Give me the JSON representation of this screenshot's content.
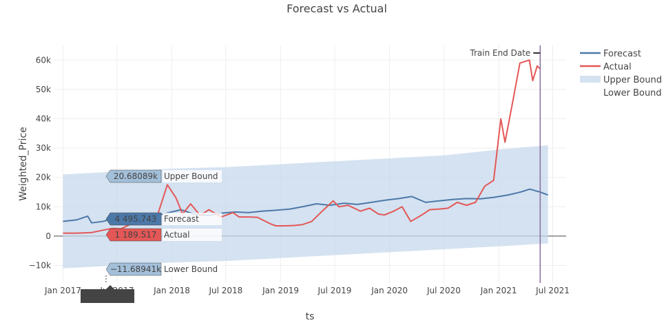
{
  "chart_data": {
    "type": "line",
    "title": "Forecast vs Actual",
    "xlabel": "ts",
    "ylabel": "Weighted_Price",
    "x_tick_labels": [
      "Jan 2017",
      "Jul 2017",
      "Jan 2018",
      "Jul 2018",
      "Jan 2019",
      "Jul 2019",
      "Jan 2020",
      "Jul 2020",
      "Jan 2021",
      "Jul 2021"
    ],
    "x_tick_dates": [
      "2017-01-01",
      "2017-07-01",
      "2018-01-01",
      "2018-07-01",
      "2019-01-01",
      "2019-07-01",
      "2020-01-01",
      "2020-07-01",
      "2021-01-01",
      "2021-07-01"
    ],
    "y_tick_labels": [
      "−10k",
      "0",
      "10k",
      "20k",
      "30k",
      "40k",
      "50k",
      "60k"
    ],
    "y_tick_values": [
      -10000,
      0,
      10000,
      20000,
      30000,
      40000,
      50000,
      60000
    ],
    "xlim": [
      "2016-12-01",
      "2021-08-15"
    ],
    "ylim": [
      -16000,
      65000
    ],
    "grid": true,
    "legend_position": "top-right",
    "annotation": {
      "text": "Train End Date",
      "date": "2021-05-20"
    },
    "hover": {
      "date_label": "Apr 7, 2017",
      "upper_bound": "20.68089k",
      "forecast": "4 495.743",
      "actual": "1 189.517",
      "lower_bound": "−11.68941k",
      "upper_label": "Upper Bound",
      "forecast_label": "Forecast",
      "actual_label": "Actual",
      "lower_label": "Lower Bound"
    },
    "series": [
      {
        "name": "Forecast",
        "color": "#4c78a8",
        "x": [
          "2017-01-01",
          "2017-02-15",
          "2017-03-25",
          "2017-04-07",
          "2017-05-15",
          "2017-06-15",
          "2017-08-01",
          "2017-09-15",
          "2017-11-01",
          "2017-12-15",
          "2018-02-01",
          "2018-03-15",
          "2018-05-01",
          "2018-06-15",
          "2018-08-01",
          "2018-09-15",
          "2018-11-01",
          "2018-12-15",
          "2019-02-01",
          "2019-03-15",
          "2019-05-01",
          "2019-06-15",
          "2019-08-01",
          "2019-09-15",
          "2019-11-01",
          "2019-12-15",
          "2020-02-01",
          "2020-03-15",
          "2020-05-01",
          "2020-06-15",
          "2020-08-01",
          "2020-09-15",
          "2020-11-01",
          "2020-12-15",
          "2021-02-01",
          "2021-03-15",
          "2021-04-15",
          "2021-05-20",
          "2021-06-15"
        ],
        "y": [
          5000,
          5500,
          6800,
          4500,
          5000,
          5800,
          6500,
          7000,
          6800,
          7800,
          9000,
          7500,
          7000,
          7800,
          8200,
          8000,
          8500,
          8800,
          9200,
          10000,
          11000,
          10500,
          11200,
          10800,
          11500,
          12200,
          12800,
          13500,
          11500,
          12000,
          12500,
          12800,
          12700,
          13200,
          14000,
          15000,
          16000,
          15000,
          14000
        ]
      },
      {
        "name": "Actual",
        "color": "#e45756",
        "x": [
          "2017-01-01",
          "2017-02-15",
          "2017-04-07",
          "2017-05-15",
          "2017-06-15",
          "2017-07-15",
          "2017-08-15",
          "2017-09-15",
          "2017-10-15",
          "2017-11-15",
          "2017-12-17",
          "2018-01-15",
          "2018-02-06",
          "2018-03-05",
          "2018-04-06",
          "2018-05-05",
          "2018-06-15",
          "2018-07-25",
          "2018-08-15",
          "2018-09-15",
          "2018-10-15",
          "2018-11-25",
          "2018-12-15",
          "2019-01-15",
          "2019-02-15",
          "2019-03-15",
          "2019-04-15",
          "2019-05-15",
          "2019-06-26",
          "2019-07-15",
          "2019-08-15",
          "2019-09-25",
          "2019-10-26",
          "2019-11-25",
          "2019-12-15",
          "2020-01-15",
          "2020-02-12",
          "2020-03-12",
          "2020-04-15",
          "2020-05-15",
          "2020-06-15",
          "2020-07-15",
          "2020-08-15",
          "2020-09-15",
          "2020-10-15",
          "2020-11-15",
          "2020-12-15",
          "2021-01-08",
          "2021-01-22",
          "2021-02-21",
          "2021-03-13",
          "2021-04-14",
          "2021-04-25",
          "2021-05-10",
          "2021-05-20"
        ],
        "y": [
          1000,
          1000,
          1189.517,
          2000,
          2600,
          2500,
          4000,
          4200,
          5500,
          7500,
          17500,
          13000,
          7500,
          11000,
          7000,
          9000,
          6500,
          8000,
          6500,
          6500,
          6400,
          4300,
          3500,
          3500,
          3600,
          3900,
          5000,
          8000,
          12000,
          10000,
          10500,
          8500,
          9500,
          7500,
          7200,
          8500,
          10000,
          5000,
          7000,
          9000,
          9200,
          9500,
          11500,
          10500,
          11500,
          17000,
          19000,
          40000,
          32000,
          48000,
          59000,
          60000,
          53000,
          58000,
          57000
        ]
      },
      {
        "name": "Upper Bound",
        "color": "#c5d8ec",
        "x": [
          "2017-01-01",
          "2017-07-01",
          "2018-01-01",
          "2018-07-01",
          "2019-01-01",
          "2019-07-01",
          "2020-01-01",
          "2020-07-01",
          "2021-01-01",
          "2021-06-15"
        ],
        "y": [
          21000,
          22000,
          23000,
          23500,
          24500,
          25500,
          26500,
          27500,
          29500,
          31000
        ]
      },
      {
        "name": "Lower Bound",
        "color": "#c5d8ec",
        "x": [
          "2017-01-01",
          "2017-07-01",
          "2018-01-01",
          "2018-07-01",
          "2019-01-01",
          "2019-07-01",
          "2020-01-01",
          "2020-07-01",
          "2021-01-01",
          "2021-06-15"
        ],
        "y": [
          -11000,
          -10000,
          -9000,
          -8500,
          -7500,
          -6500,
          -5500,
          -4500,
          -3500,
          -2500
        ]
      }
    ]
  }
}
